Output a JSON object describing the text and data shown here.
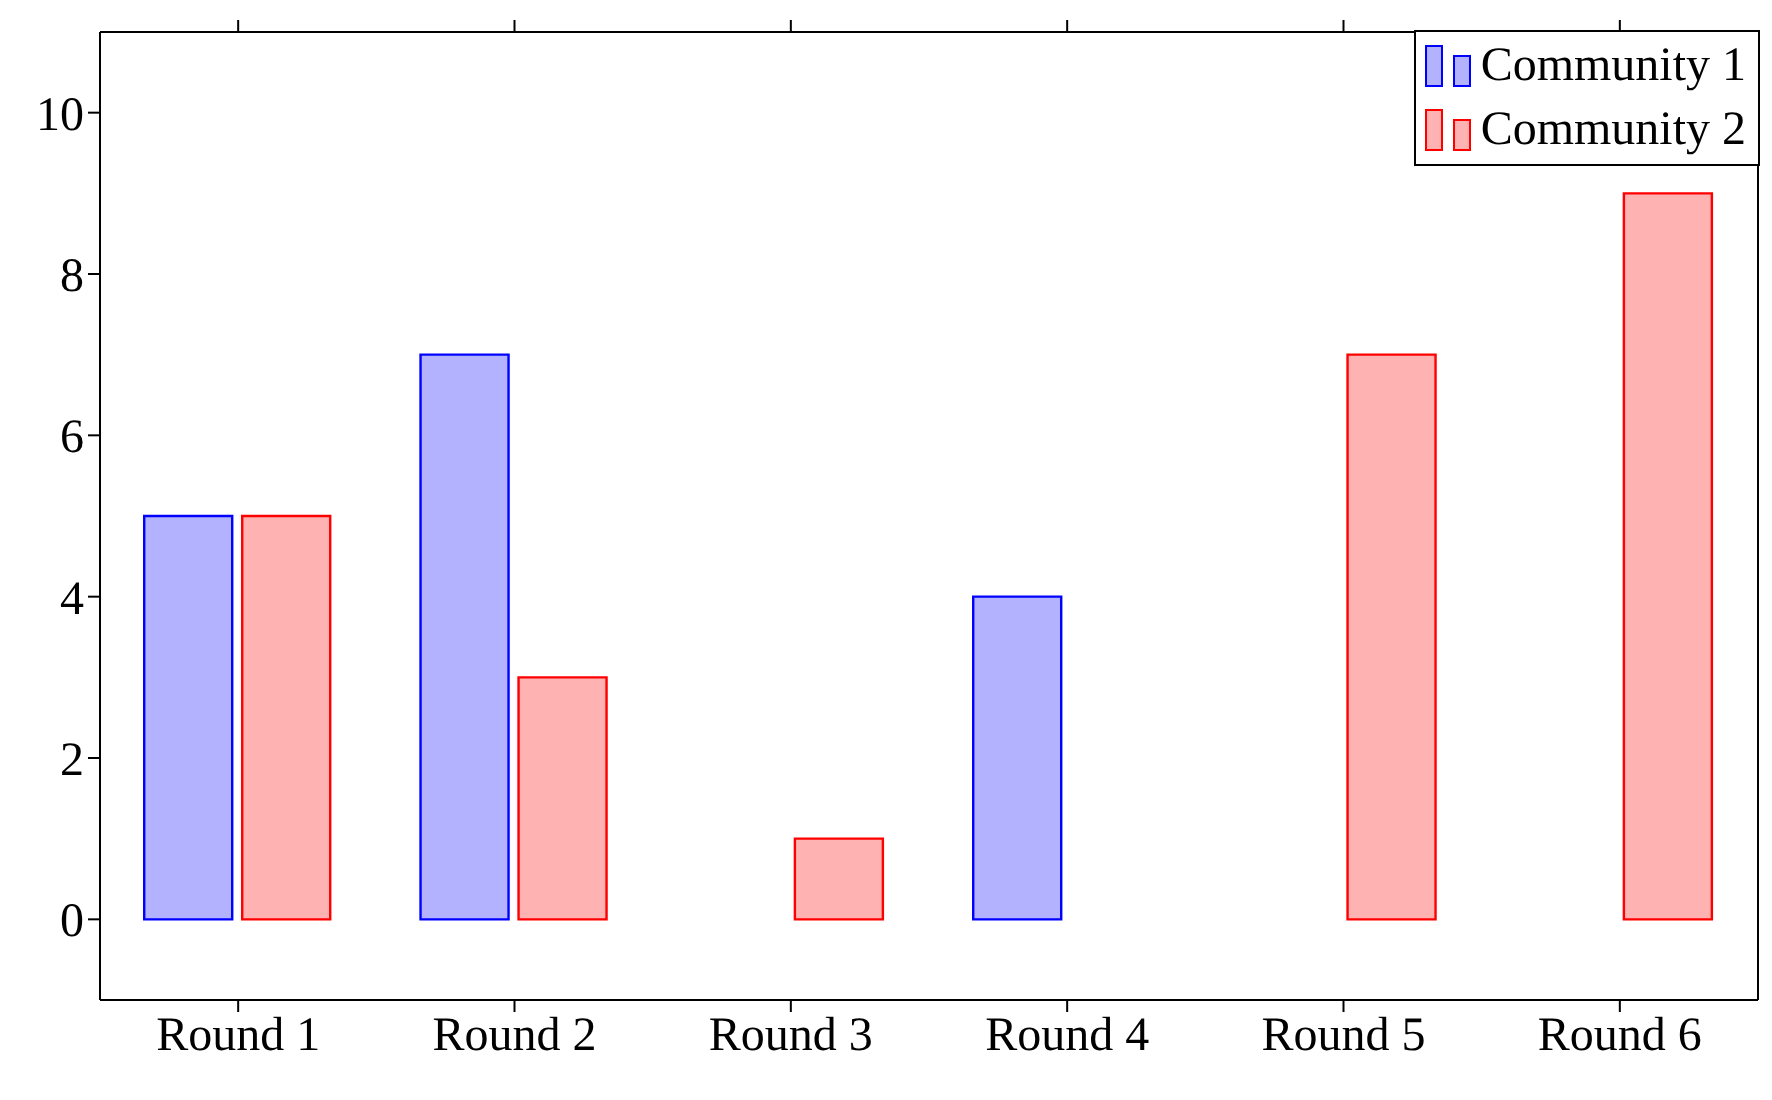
{
  "chart_data": {
    "type": "bar",
    "categories": [
      "Round 1",
      "Round 2",
      "Round 3",
      "Round 4",
      "Round 5",
      "Round 6"
    ],
    "series": [
      {
        "name": "Community 1",
        "color": "#0000ff",
        "values": [
          5,
          7,
          0,
          4,
          0,
          0
        ]
      },
      {
        "name": "Community 2",
        "color": "#ff0000",
        "values": [
          5,
          3,
          1,
          0,
          7,
          9
        ]
      }
    ],
    "ylim": [
      -1,
      11
    ],
    "yticks": [
      0,
      2,
      4,
      6,
      8,
      10
    ],
    "legend": "top right"
  }
}
